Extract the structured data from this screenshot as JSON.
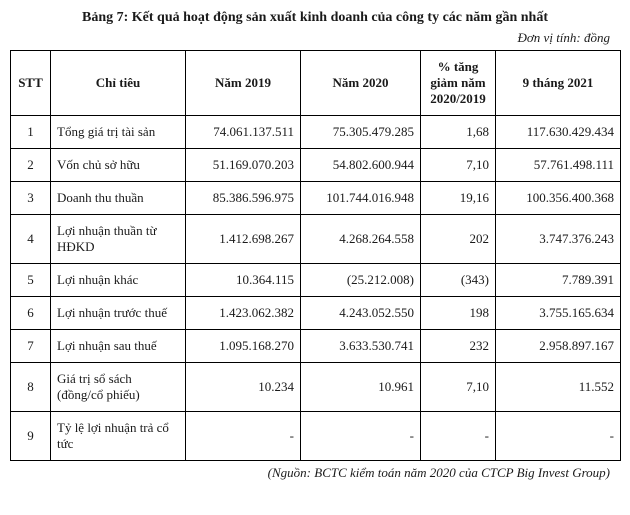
{
  "title": "Bảng 7: Kết quả hoạt động sản xuất kinh doanh của công ty các năm gần nhất",
  "unit": "Đơn vị tính: đồng",
  "source": "(Nguồn: BCTC kiểm toán năm 2020 của CTCP Big Invest Group)",
  "table": {
    "background_color": "#ffffff",
    "border_color": "#000000",
    "header_fontsize": 13,
    "cell_fontsize": 13,
    "columns": [
      {
        "label": "STT",
        "class": "col-stt"
      },
      {
        "label": "Chỉ tiêu",
        "class": "col-metric"
      },
      {
        "label": "Năm 2019",
        "class": "col-y1"
      },
      {
        "label": "Năm 2020",
        "class": "col-y2"
      },
      {
        "label": "% tăng giảm năm 2020/2019",
        "class": "col-pct"
      },
      {
        "label": "9 tháng 2021",
        "class": "col-y3"
      }
    ],
    "rows": [
      {
        "stt": "1",
        "metric": "Tổng giá trị tài sản",
        "y1": "74.061.137.511",
        "y2": "75.305.479.285",
        "pct": "1,68",
        "y3": "117.630.429.434"
      },
      {
        "stt": "2",
        "metric": "Vốn chủ sở hữu",
        "y1": "51.169.070.203",
        "y2": "54.802.600.944",
        "pct": "7,10",
        "y3": "57.761.498.111"
      },
      {
        "stt": "3",
        "metric": "Doanh thu thuần",
        "y1": "85.386.596.975",
        "y2": "101.744.016.948",
        "pct": "19,16",
        "y3": "100.356.400.368"
      },
      {
        "stt": "4",
        "metric": "Lợi nhuận thuần từ HĐKD",
        "y1": "1.412.698.267",
        "y2": "4.268.264.558",
        "pct": "202",
        "y3": "3.747.376.243"
      },
      {
        "stt": "5",
        "metric": "Lợi nhuận khác",
        "y1": "10.364.115",
        "y2": "(25.212.008)",
        "pct": "(343)",
        "y3": "7.789.391"
      },
      {
        "stt": "6",
        "metric": "Lợi nhuận trước thuế",
        "y1": "1.423.062.382",
        "y2": "4.243.052.550",
        "pct": "198",
        "y3": "3.755.165.634"
      },
      {
        "stt": "7",
        "metric": "Lợi nhuận sau thuế",
        "y1": "1.095.168.270",
        "y2": "3.633.530.741",
        "pct": "232",
        "y3": "2.958.897.167"
      },
      {
        "stt": "8",
        "metric": "Giá trị sổ sách (đồng/cổ phiếu)",
        "y1": "10.234",
        "y2": "10.961",
        "pct": "7,10",
        "y3": "11.552"
      },
      {
        "stt": "9",
        "metric": "Tỷ lệ lợi nhuận trả cổ tức",
        "y1": "-",
        "y2": "-",
        "pct": "-",
        "y3": "-"
      }
    ]
  }
}
